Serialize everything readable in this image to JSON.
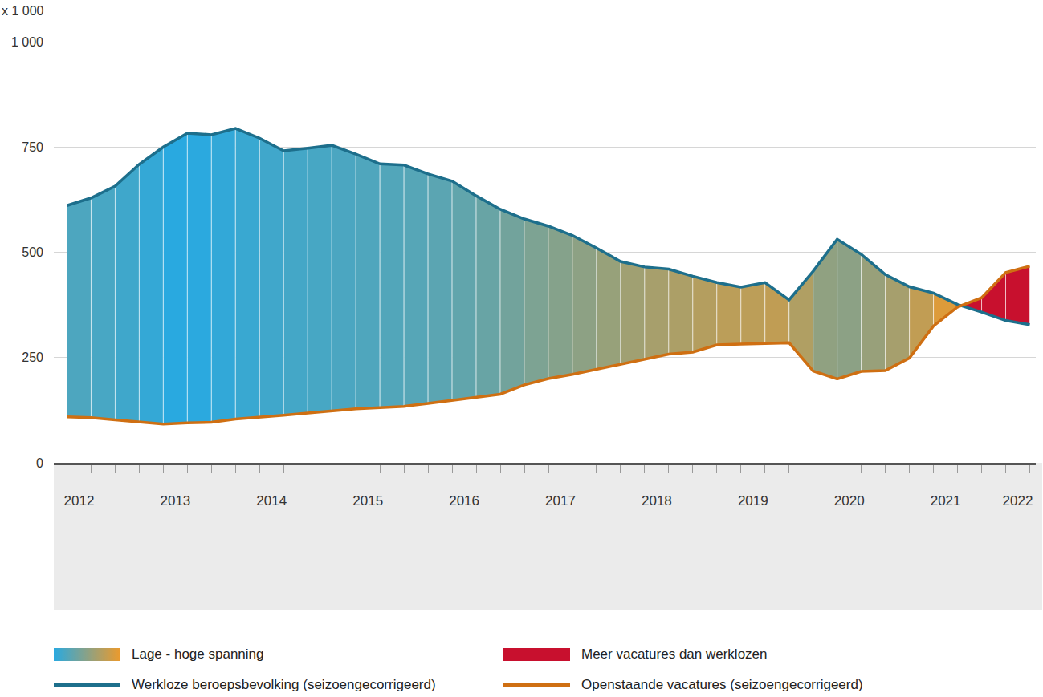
{
  "chart_data": {
    "type": "line",
    "ylabel": "x 1 000",
    "categories": [
      "2012",
      null,
      null,
      null,
      "2013",
      null,
      null,
      null,
      "2014",
      null,
      null,
      null,
      "2015",
      null,
      null,
      null,
      "2016",
      null,
      null,
      null,
      "2017",
      null,
      null,
      null,
      "2018",
      null,
      null,
      null,
      "2019",
      null,
      null,
      null,
      "2020",
      null,
      null,
      null,
      "2021",
      null,
      null,
      "2022",
      null
    ],
    "series": [
      {
        "name": "Werkloze beroepsbevolking (seizoengecorrigeerd)",
        "color": "#1d6f8c",
        "values": [
          611,
          629,
          657,
          709,
          750,
          783,
          779,
          794,
          771,
          741,
          747,
          754,
          733,
          710,
          707,
          686,
          669,
          634,
          602,
          579,
          562,
          540,
          510,
          478,
          465,
          460,
          443,
          428,
          417,
          428,
          387,
          455,
          531,
          495,
          447,
          418,
          403,
          376,
          358,
          338,
          328
        ]
      },
      {
        "name": "Openstaande vacatures (seizoengecorrigeerd)",
        "color": "#cf6f12",
        "values": [
          109,
          107,
          102,
          97,
          92,
          95,
          96,
          104,
          108,
          113,
          118,
          123,
          128,
          131,
          134,
          141,
          148,
          155,
          163,
          185,
          200,
          210,
          222,
          233,
          246,
          258,
          263,
          280,
          282,
          284,
          285,
          218,
          199,
          217,
          219,
          249,
          325,
          370,
          392,
          452,
          467
        ]
      }
    ],
    "areas": [
      {
        "name": "Lage - hoge spanning",
        "colors": [
          "#29a9e0",
          "#ec9a2c"
        ]
      },
      {
        "name": "Meer vacatures dan werklozen",
        "color": "#c8102e"
      }
    ],
    "ylim": [
      0,
      1000
    ],
    "yticks": [
      0,
      250,
      500,
      750,
      {
        "value": 1000,
        "label": "1 000"
      }
    ],
    "grid": true
  }
}
